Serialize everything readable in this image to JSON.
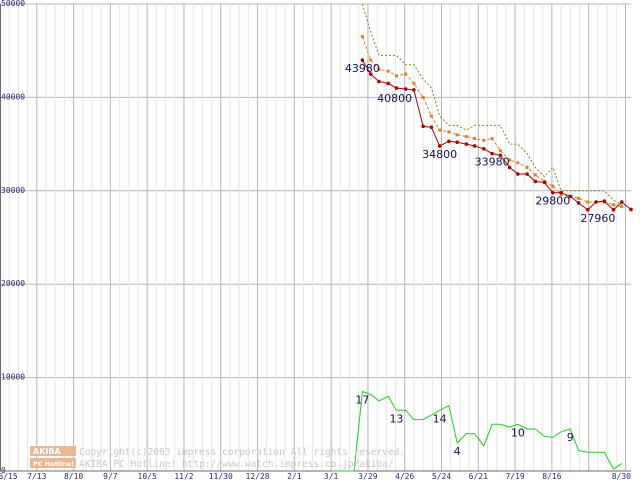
{
  "chart_data": {
    "type": "line",
    "title": "",
    "xlabel": "",
    "ylabel": "",
    "ylim": [
      0,
      50000
    ],
    "yticks": [
      0,
      10000,
      20000,
      30000,
      40000,
      50000
    ],
    "xticks": [
      "6/15",
      "7/13",
      "8/10",
      "9/7",
      "10/5",
      "11/2",
      "11/30",
      "12/28",
      "2/1",
      "3/1",
      "3/29",
      "4/26",
      "5/24",
      "6/21",
      "7/19",
      "8/16",
      "8/30"
    ],
    "grid": true,
    "legend": "none",
    "series": [
      {
        "style": "dotted",
        "color": "#8b7a1a",
        "points": [
          [
            39.4,
            50000
          ],
          [
            40.3,
            47000
          ],
          [
            41.2,
            44500
          ],
          [
            42.2,
            44500
          ],
          [
            43.1,
            44500
          ],
          [
            44.1,
            43500
          ],
          [
            45.0,
            43500
          ],
          [
            46.0,
            42000
          ],
          [
            46.9,
            41000
          ],
          [
            47.8,
            38000
          ],
          [
            48.8,
            37000
          ],
          [
            49.7,
            37000
          ],
          [
            50.7,
            36500
          ],
          [
            51.6,
            37000
          ],
          [
            52.6,
            37000
          ],
          [
            53.5,
            37000
          ],
          [
            54.4,
            37000
          ],
          [
            55.4,
            35000
          ],
          [
            56.3,
            35000
          ],
          [
            57.3,
            34000
          ],
          [
            58.2,
            32500
          ],
          [
            59.2,
            31500
          ],
          [
            60.1,
            32500
          ],
          [
            61.0,
            30000
          ],
          [
            62.0,
            30000
          ],
          [
            62.9,
            30000
          ],
          [
            63.9,
            30000
          ],
          [
            64.8,
            30000
          ],
          [
            65.7,
            30000
          ],
          [
            66.7,
            29000
          ],
          [
            67.6,
            28500
          ]
        ]
      },
      {
        "style": "dashed",
        "color": "#e08020",
        "points": [
          [
            39.4,
            46500
          ],
          [
            40.3,
            44000
          ],
          [
            41.2,
            43000
          ],
          [
            42.2,
            42800
          ],
          [
            43.1,
            42300
          ],
          [
            44.1,
            42500
          ],
          [
            45.0,
            41500
          ],
          [
            46.0,
            40000
          ],
          [
            46.9,
            38000
          ],
          [
            47.8,
            36500
          ],
          [
            48.8,
            36300
          ],
          [
            49.7,
            36000
          ],
          [
            50.7,
            35800
          ],
          [
            51.6,
            35600
          ],
          [
            52.6,
            35400
          ],
          [
            53.5,
            35600
          ],
          [
            54.4,
            34300
          ],
          [
            55.4,
            33300
          ],
          [
            56.3,
            33000
          ],
          [
            57.3,
            32500
          ],
          [
            58.2,
            31700
          ],
          [
            59.2,
            31000
          ],
          [
            60.1,
            30500
          ],
          [
            61.0,
            29600
          ],
          [
            62.0,
            29400
          ],
          [
            62.9,
            29200
          ],
          [
            63.9,
            28800
          ],
          [
            64.8,
            28800
          ],
          [
            65.7,
            28800
          ],
          [
            66.7,
            28500
          ],
          [
            67.6,
            28300
          ]
        ]
      },
      {
        "style": "solid",
        "color": "#b00000",
        "markers": true,
        "points": [
          [
            39.4,
            43980
          ],
          [
            40.3,
            42500
          ],
          [
            41.2,
            41700
          ],
          [
            42.2,
            41500
          ],
          [
            43.1,
            41000
          ],
          [
            44.1,
            40900
          ],
          [
            45.0,
            40800
          ],
          [
            46.0,
            36900
          ],
          [
            46.9,
            36800
          ],
          [
            47.8,
            34800
          ],
          [
            48.8,
            35300
          ],
          [
            49.7,
            35200
          ],
          [
            50.7,
            35000
          ],
          [
            51.6,
            34800
          ],
          [
            52.6,
            34500
          ],
          [
            53.5,
            33980
          ],
          [
            54.4,
            33800
          ],
          [
            55.4,
            32500
          ],
          [
            56.3,
            31800
          ],
          [
            57.3,
            31800
          ],
          [
            58.2,
            31000
          ],
          [
            59.2,
            30900
          ],
          [
            60.1,
            29800
          ],
          [
            61.0,
            29800
          ],
          [
            62.0,
            29400
          ],
          [
            62.9,
            28700
          ],
          [
            63.9,
            27960
          ],
          [
            64.8,
            28800
          ],
          [
            65.7,
            28900
          ],
          [
            66.7,
            27960
          ],
          [
            67.6,
            28800
          ],
          [
            68.6,
            28000
          ]
        ]
      },
      {
        "style": "solid",
        "color": "#22cc22",
        "points": [
          [
            36.0,
            0
          ],
          [
            38.5,
            0
          ],
          [
            39.4,
            8500
          ],
          [
            40.3,
            8200
          ],
          [
            41.2,
            7500
          ],
          [
            42.2,
            8000
          ],
          [
            43.1,
            6500
          ],
          [
            44.1,
            6500
          ],
          [
            45.0,
            5500
          ],
          [
            46.0,
            5500
          ],
          [
            46.9,
            6000
          ],
          [
            47.8,
            6500
          ],
          [
            48.8,
            7000
          ],
          [
            49.7,
            3000
          ],
          [
            50.7,
            4000
          ],
          [
            51.6,
            4000
          ],
          [
            52.6,
            2700
          ],
          [
            53.5,
            5000
          ],
          [
            54.4,
            5000
          ],
          [
            55.4,
            4700
          ],
          [
            56.3,
            5000
          ],
          [
            57.3,
            4500
          ],
          [
            58.2,
            4500
          ],
          [
            59.2,
            3700
          ],
          [
            60.1,
            3600
          ],
          [
            61.0,
            4200
          ],
          [
            62.0,
            4500
          ],
          [
            62.9,
            2200
          ],
          [
            63.9,
            2000
          ],
          [
            64.8,
            2000
          ],
          [
            65.7,
            2000
          ],
          [
            66.7,
            200
          ],
          [
            67.6,
            800
          ]
        ]
      }
    ],
    "annotations": [
      {
        "text": "43980",
        "x": 39.4,
        "y": 43980
      },
      {
        "text": "40800",
        "x": 42.9,
        "y": 40800
      },
      {
        "text": "34800",
        "x": 47.8,
        "y": 34800
      },
      {
        "text": "33980",
        "x": 53.5,
        "y": 33980
      },
      {
        "text": "29800",
        "x": 60.1,
        "y": 29800
      },
      {
        "text": "27960",
        "x": 65.0,
        "y": 27960
      },
      {
        "text": "17",
        "x": 39.4,
        "y": 8500
      },
      {
        "text": "13",
        "x": 43.1,
        "y": 6500
      },
      {
        "text": "14",
        "x": 47.8,
        "y": 6500
      },
      {
        "text": "4",
        "x": 49.7,
        "y": 3000
      },
      {
        "text": "10",
        "x": 56.3,
        "y": 5000
      },
      {
        "text": "9",
        "x": 62.0,
        "y": 4500
      }
    ]
  },
  "footer": {
    "logo_text_top": "AKIBA",
    "logo_text_bottom": "PC Hotline!",
    "copyright": "Copyright(c)2003 impress corporation All rights reserved.",
    "site": "AKIBA PC Hotline!  http://www.watch.impress.co.jp/akiba/"
  }
}
